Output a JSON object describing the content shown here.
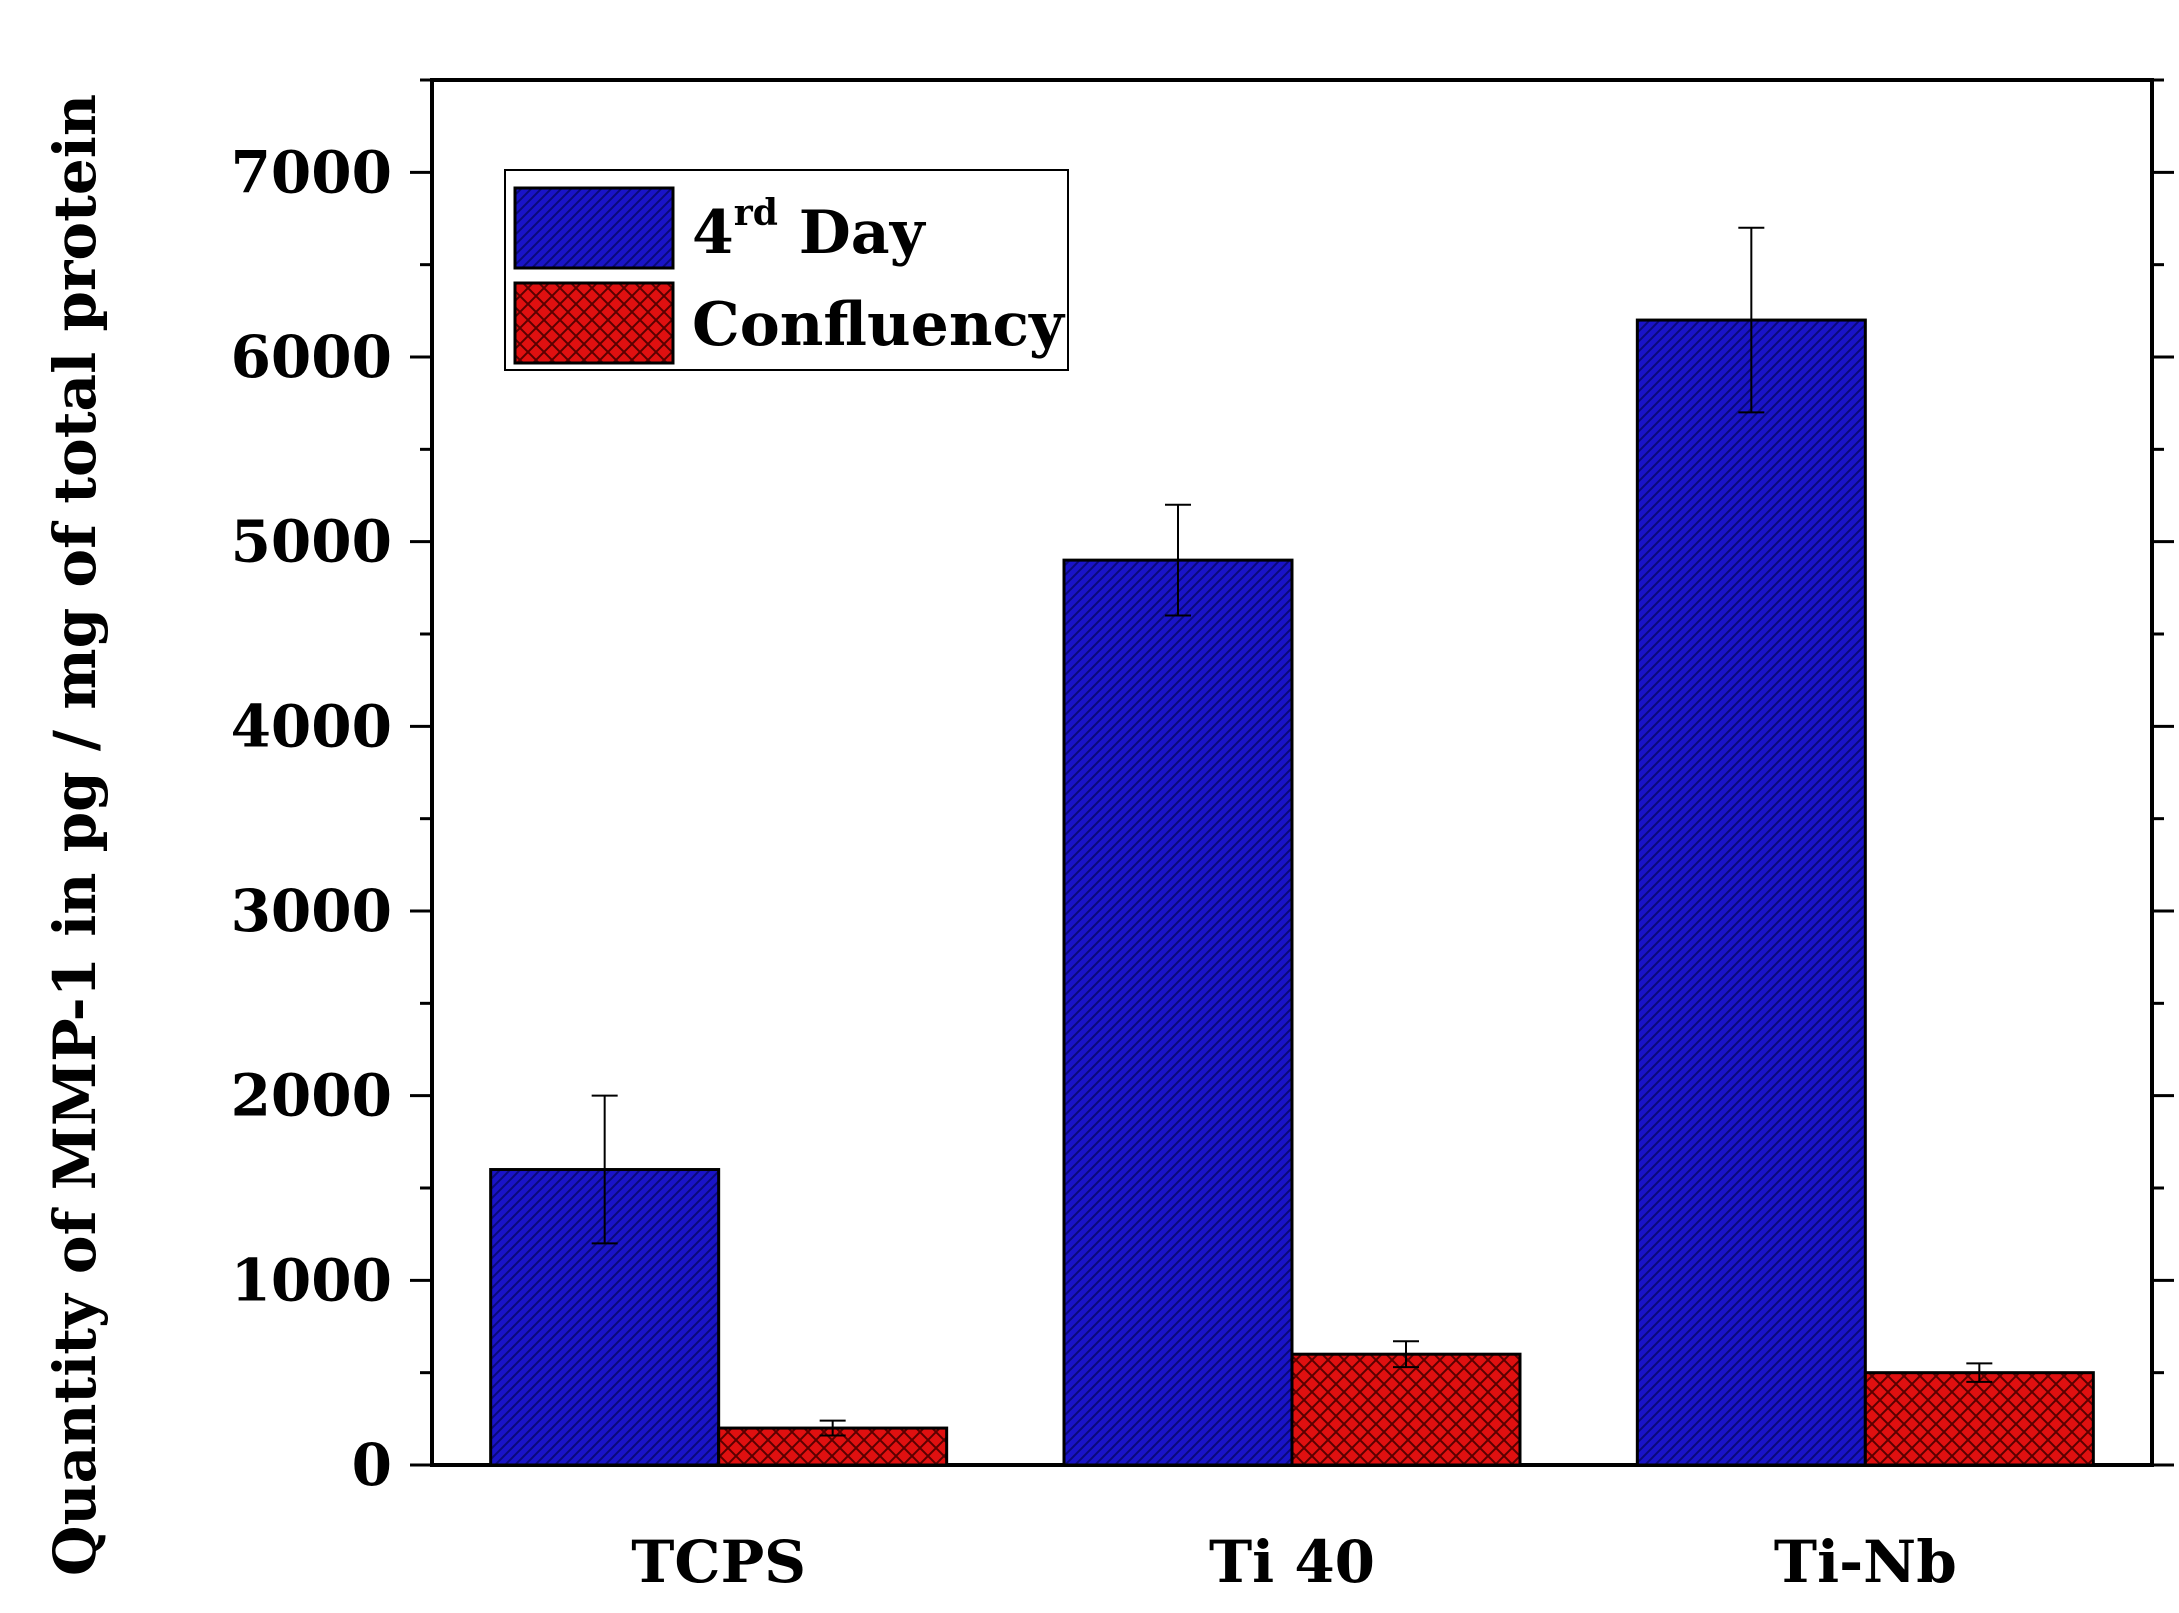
{
  "chart_data": {
    "type": "bar",
    "title": "",
    "xlabel": "",
    "ylabel": "Quantity of MMP-1 in pg / mg of total protein",
    "categories": [
      "TCPS",
      "Ti 40",
      "Ti-Nb"
    ],
    "series": [
      {
        "name": "4rd Day",
        "legend_base": "4",
        "legend_sup": "rd",
        "legend_rest": " Day",
        "color": "#1a14c8",
        "pattern": "diagonal-hatch",
        "values": [
          1600,
          4900,
          6200
        ],
        "errors": [
          400,
          300,
          500
        ]
      },
      {
        "name": "Confluency",
        "legend_base": "Confluency",
        "legend_sup": "",
        "legend_rest": "",
        "color": "#e01010",
        "pattern": "cross-hatch",
        "values": [
          200,
          600,
          500
        ],
        "errors": [
          40,
          70,
          50
        ]
      }
    ],
    "ylim": [
      0,
      7500
    ],
    "yticks": [
      0,
      1000,
      2000,
      3000,
      4000,
      5000,
      6000,
      7000
    ],
    "yminor_step": 500,
    "legend_position": "top-left",
    "grid": false
  }
}
